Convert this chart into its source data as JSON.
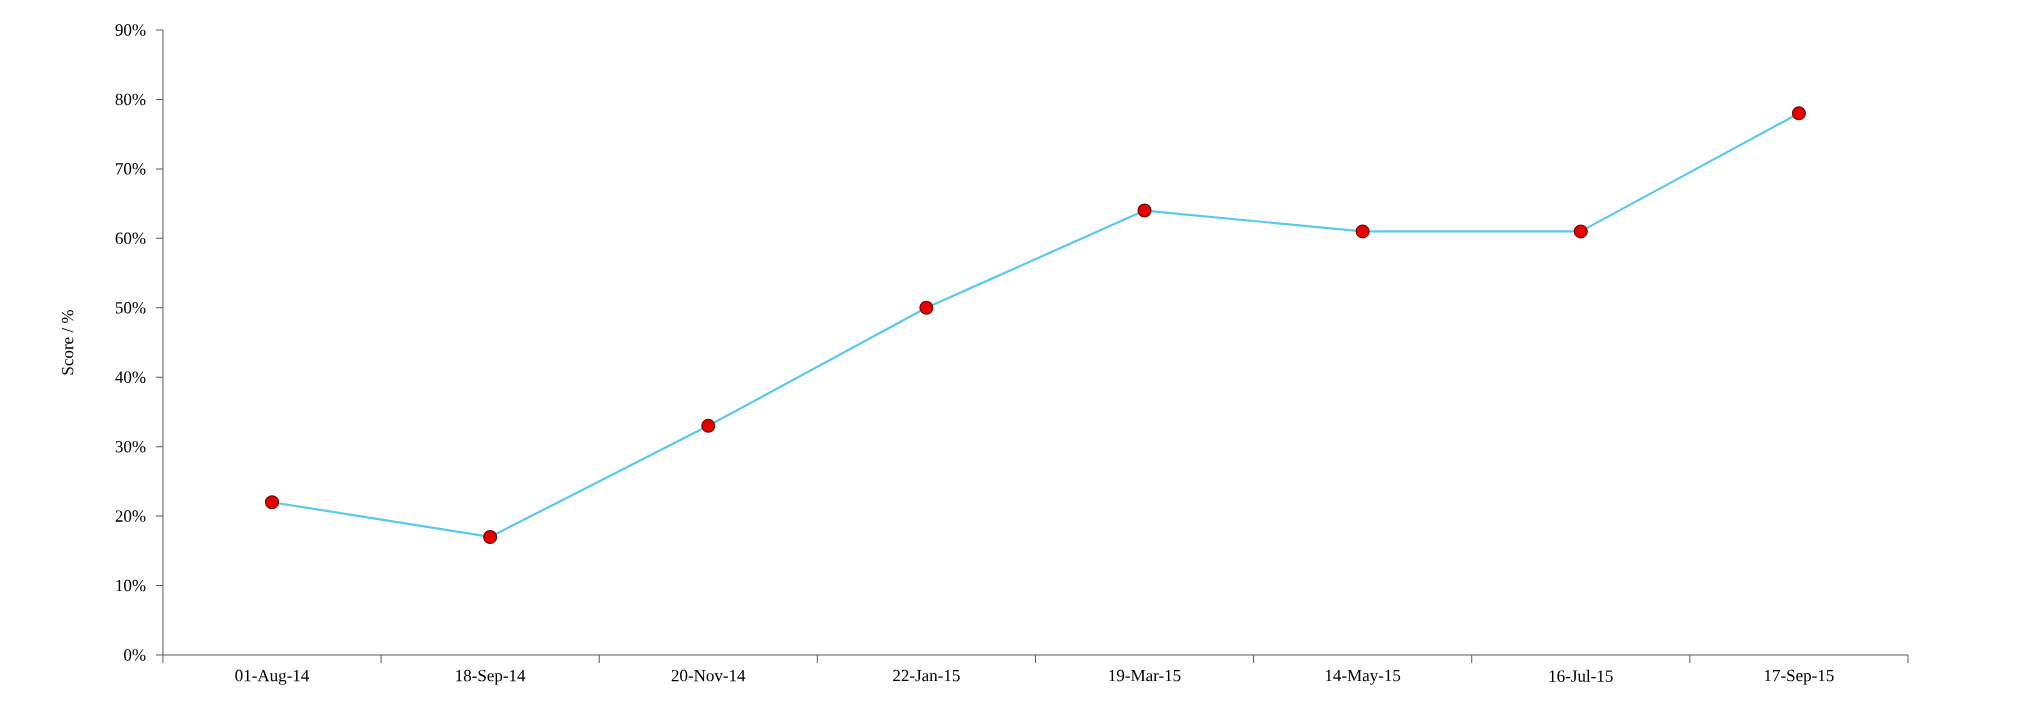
{
  "chart_data": {
    "type": "line",
    "ylabel": "Score / %",
    "categories": [
      "01-Aug-14",
      "18-Sep-14",
      "20-Nov-14",
      "22-Jan-15",
      "19-Mar-15",
      "14-May-15",
      "16-Jul-15",
      "17-Sep-15"
    ],
    "series": [
      {
        "color": "#5bc8f0",
        "values": [
          22,
          17,
          33,
          50,
          64,
          61,
          61,
          78
        ]
      }
    ],
    "marker": "circle",
    "line_style": "solid",
    "grid": false,
    "legend": false,
    "ylim": [
      0,
      90
    ],
    "yticks": [
      {
        "value": 0,
        "label": "0%"
      },
      {
        "value": 10,
        "label": "10%"
      },
      {
        "value": 20,
        "label": "20%"
      },
      {
        "value": 30,
        "label": "30%"
      },
      {
        "value": 40,
        "label": "40%"
      },
      {
        "value": 50,
        "label": "50%"
      },
      {
        "value": 60,
        "label": "60%"
      },
      {
        "value": 70,
        "label": "70%"
      },
      {
        "value": 80,
        "label": "80%"
      },
      {
        "value": 90,
        "label": "90%"
      }
    ]
  }
}
